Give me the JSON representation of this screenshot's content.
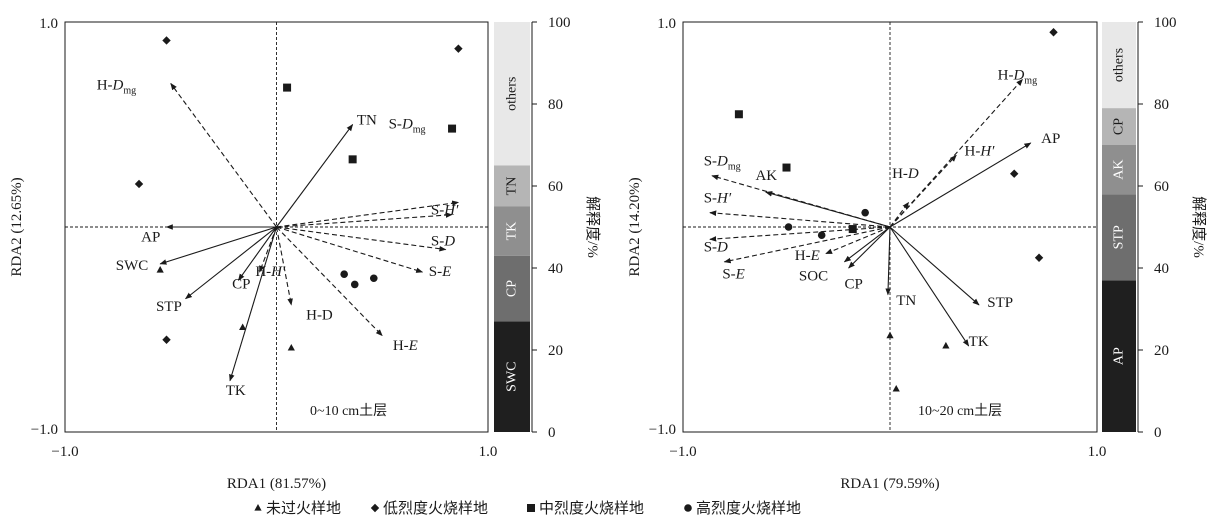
{
  "chart_data": [
    {
      "type": "scatter",
      "panel": "0-10 cm",
      "layer_label": "0~10 cm土层",
      "xlabel": "RDA1 (81.57%)",
      "ylabel": "RDA2 (12.65%)",
      "xlim": [
        -1.0,
        1.0
      ],
      "ylim": [
        -1.0,
        1.0
      ],
      "xticks": [
        "−1.0",
        "1.0"
      ],
      "yticks": [
        "1.0",
        "−1.0"
      ],
      "grid": false,
      "zero_lines": true,
      "vectors": [
        {
          "name": "H-Dmg",
          "base": "H-",
          "italic": "D",
          "sub": "mg",
          "dx": -0.5,
          "dy": 0.7,
          "style": "dashed",
          "lx": -0.85,
          "ly": 0.67
        },
        {
          "name": "TN",
          "base": "TN",
          "dx": 0.36,
          "dy": 0.5,
          "style": "solid",
          "lx": 0.38,
          "ly": 0.5
        },
        {
          "name": "S-Dmg",
          "base": "S-",
          "italic": "D",
          "sub": "mg",
          "dx": 0.86,
          "dy": 0.12,
          "style": "dashed",
          "lx": 0.53,
          "ly": 0.48
        },
        {
          "name": "S-H'",
          "base": "S-",
          "italic": "H′",
          "dx": 0.83,
          "dy": 0.06,
          "style": "dashed",
          "lx": 0.73,
          "ly": 0.06
        },
        {
          "name": "S-D",
          "base": "S-",
          "italic": "D",
          "dx": 0.8,
          "dy": -0.11,
          "style": "dashed",
          "lx": 0.73,
          "ly": -0.09
        },
        {
          "name": "S-E",
          "base": "S-",
          "italic": "E",
          "dx": 0.69,
          "dy": -0.22,
          "style": "dashed",
          "lx": 0.72,
          "ly": -0.24
        },
        {
          "name": "AP",
          "base": "AP",
          "dx": -0.52,
          "dy": 0.0,
          "style": "solid",
          "lx": -0.64,
          "ly": -0.07
        },
        {
          "name": "SWC",
          "base": "SWC",
          "dx": -0.55,
          "dy": -0.18,
          "style": "solid",
          "lx": -0.76,
          "ly": -0.21
        },
        {
          "name": "STP",
          "base": "STP",
          "dx": -0.43,
          "dy": -0.35,
          "style": "solid",
          "lx": -0.57,
          "ly": -0.41
        },
        {
          "name": "CP",
          "base": "CP",
          "dx": -0.18,
          "dy": -0.26,
          "style": "solid",
          "lx": -0.21,
          "ly": -0.3
        },
        {
          "name": "H-H'",
          "base": "H-",
          "italic": "H′",
          "dx": -0.08,
          "dy": -0.22,
          "style": "dashed",
          "lx": -0.1,
          "ly": -0.24
        },
        {
          "name": "TK",
          "base": "TK",
          "dx": -0.22,
          "dy": -0.75,
          "style": "solid",
          "lx": -0.24,
          "ly": -0.82
        },
        {
          "name": "H-D",
          "base": "H-D",
          "dx": 0.07,
          "dy": -0.38,
          "style": "dashed",
          "lx": 0.14,
          "ly": -0.45
        },
        {
          "name": "H-E",
          "base": "H-",
          "italic": "E",
          "dx": 0.5,
          "dy": -0.53,
          "style": "dashed",
          "lx": 0.55,
          "ly": -0.6
        }
      ],
      "points": {
        "unburned": [
          [
            -0.55,
            -0.21
          ],
          [
            -0.16,
            -0.49
          ],
          [
            0.07,
            -0.59
          ]
        ],
        "low": [
          [
            -0.52,
            0.91
          ],
          [
            -0.65,
            0.21
          ],
          [
            -0.52,
            -0.55
          ],
          [
            0.86,
            0.87
          ]
        ],
        "moderate": [
          [
            0.05,
            0.68
          ],
          [
            0.83,
            0.48
          ],
          [
            0.36,
            0.33
          ]
        ],
        "high": [
          [
            0.32,
            -0.23
          ],
          [
            0.37,
            -0.28
          ],
          [
            0.46,
            -0.25
          ]
        ]
      },
      "bar": {
        "segments": [
          {
            "label": "SWC",
            "from": 0,
            "to": 27,
            "color": "#1f1f1f",
            "text": "#ffffff"
          },
          {
            "label": "CP",
            "from": 27,
            "to": 43,
            "color": "#6e6e6e",
            "text": "#ffffff"
          },
          {
            "label": "TK",
            "from": 43,
            "to": 55,
            "color": "#8f8f8f",
            "text": "#ffffff"
          },
          {
            "label": "TN",
            "from": 55,
            "to": 65,
            "color": "#b5b5b5",
            "text": "#1a1a1a"
          },
          {
            "label": "others",
            "from": 65,
            "to": 100,
            "color": "#e8e8e8",
            "text": "#1a1a1a"
          }
        ],
        "ylabel": "解释度/%",
        "ticks": [
          "0",
          "20",
          "40",
          "60",
          "80",
          "100"
        ]
      }
    },
    {
      "type": "scatter",
      "panel": "10-20 cm",
      "layer_label": "10~20 cm土层",
      "xlabel": "RDA1 (79.59%)",
      "ylabel": "RDA2 (14.20%)",
      "xlim": [
        -1.0,
        1.0
      ],
      "ylim": [
        -1.0,
        1.0
      ],
      "xticks": [
        "−1.0",
        "1.0"
      ],
      "yticks": [
        "1.0",
        "−1.0"
      ],
      "grid": false,
      "zero_lines": true,
      "vectors": [
        {
          "name": "H-Dmg",
          "base": "H-",
          "italic": "D",
          "sub": "mg",
          "dx": 0.64,
          "dy": 0.72,
          "style": "dashed",
          "lx": 0.52,
          "ly": 0.72
        },
        {
          "name": "AP",
          "base": "AP",
          "dx": 0.68,
          "dy": 0.41,
          "style": "solid",
          "lx": 0.73,
          "ly": 0.41
        },
        {
          "name": "H-H'",
          "base": "H-",
          "italic": "H′",
          "dx": 0.32,
          "dy": 0.35,
          "style": "dashed",
          "lx": 0.36,
          "ly": 0.35
        },
        {
          "name": "H-D",
          "base": "H-",
          "italic": "D",
          "dx": 0.09,
          "dy": 0.12,
          "style": "dashed",
          "lx": 0.01,
          "ly": 0.24
        },
        {
          "name": "S-Dmg",
          "base": "S-",
          "italic": "D",
          "sub": "mg",
          "dx": -0.86,
          "dy": 0.25,
          "style": "dashed",
          "lx": -0.9,
          "ly": 0.3
        },
        {
          "name": "AK",
          "base": "AK",
          "dx": -0.6,
          "dy": 0.17,
          "style": "solid",
          "lx": -0.65,
          "ly": 0.23
        },
        {
          "name": "S-H'",
          "base": "S-",
          "italic": "H′",
          "dx": -0.87,
          "dy": 0.07,
          "style": "dashed",
          "lx": -0.9,
          "ly": 0.12
        },
        {
          "name": "S-D",
          "base": "S-",
          "italic": "D",
          "dx": -0.87,
          "dy": -0.06,
          "style": "dashed",
          "lx": -0.9,
          "ly": -0.12
        },
        {
          "name": "S-E",
          "base": "S-",
          "italic": "E",
          "dx": -0.8,
          "dy": -0.17,
          "style": "dashed",
          "lx": -0.81,
          "ly": -0.25
        },
        {
          "name": "H-E",
          "base": "H-",
          "italic": "E",
          "dx": -0.31,
          "dy": -0.13,
          "style": "dashed",
          "lx": -0.46,
          "ly": -0.16
        },
        {
          "name": "SOC",
          "base": "SOC",
          "dx": -0.22,
          "dy": -0.17,
          "style": "solid",
          "lx": -0.44,
          "ly": -0.26
        },
        {
          "name": "CP",
          "base": "CP",
          "dx": -0.2,
          "dy": -0.2,
          "style": "solid",
          "lx": -0.22,
          "ly": -0.3
        },
        {
          "name": "TN",
          "base": "TN",
          "dx": -0.01,
          "dy": -0.33,
          "style": "solid",
          "lx": 0.03,
          "ly": -0.38
        },
        {
          "name": "STP",
          "base": "STP",
          "dx": 0.43,
          "dy": -0.38,
          "style": "solid",
          "lx": 0.47,
          "ly": -0.39
        },
        {
          "name": "TK",
          "base": "TK",
          "dx": 0.38,
          "dy": -0.58,
          "style": "solid",
          "lx": 0.38,
          "ly": -0.58
        }
      ],
      "points": {
        "unburned": [
          [
            0.0,
            -0.53
          ],
          [
            0.27,
            -0.58
          ],
          [
            0.03,
            -0.79
          ]
        ],
        "low": [
          [
            0.79,
            0.95
          ],
          [
            0.6,
            0.26
          ],
          [
            0.72,
            -0.15
          ]
        ],
        "moderate": [
          [
            -0.73,
            0.55
          ],
          [
            -0.5,
            0.29
          ],
          [
            -0.18,
            -0.01
          ]
        ],
        "high": [
          [
            -0.49,
            0.0
          ],
          [
            -0.33,
            -0.04
          ],
          [
            -0.12,
            0.07
          ]
        ]
      },
      "bar": {
        "segments": [
          {
            "label": "AP",
            "from": 0,
            "to": 37,
            "color": "#1f1f1f",
            "text": "#ffffff"
          },
          {
            "label": "STP",
            "from": 37,
            "to": 58,
            "color": "#6e6e6e",
            "text": "#ffffff"
          },
          {
            "label": "AK",
            "from": 58,
            "to": 70,
            "color": "#8f8f8f",
            "text": "#ffffff"
          },
          {
            "label": "CP",
            "from": 70,
            "to": 79,
            "color": "#b5b5b5",
            "text": "#1a1a1a"
          },
          {
            "label": "others",
            "from": 79,
            "to": 100,
            "color": "#e8e8e8",
            "text": "#1a1a1a"
          }
        ],
        "ylabel": "解释度/%",
        "ticks": [
          "0",
          "20",
          "40",
          "60",
          "80",
          "100"
        ]
      }
    }
  ],
  "legend": [
    {
      "key": "unburned",
      "marker": "triangle",
      "label": "未过火样地"
    },
    {
      "key": "low",
      "marker": "diamond",
      "label": "低烈度火烧样地"
    },
    {
      "key": "moderate",
      "marker": "square",
      "label": "中烈度火烧样地"
    },
    {
      "key": "high",
      "marker": "circle",
      "label": "高烈度火烧样地"
    }
  ]
}
